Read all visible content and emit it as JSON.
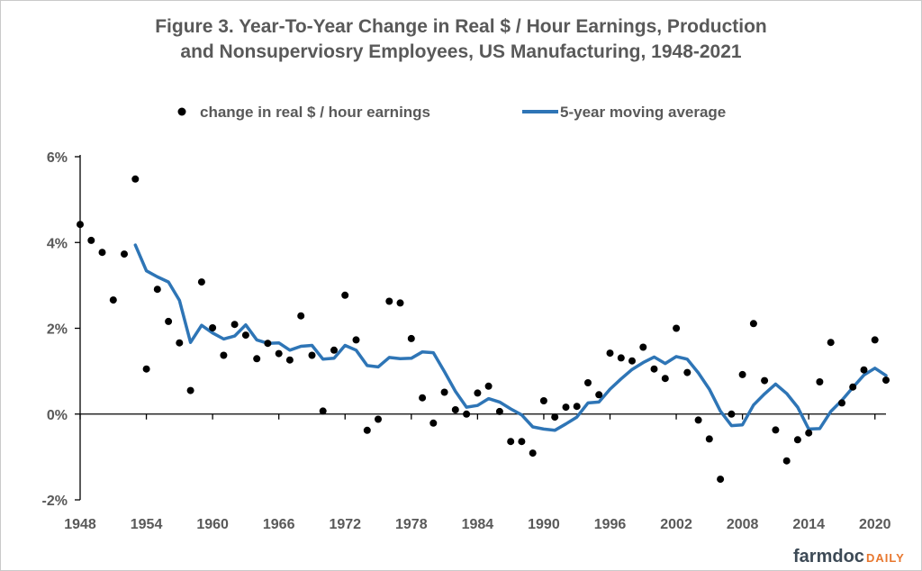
{
  "chart_data": {
    "type": "scatter",
    "title_line1": "Figure 3. Year-To-Year Change in Real $ / Hour Earnings, Production",
    "title_line2": "and Nonsuperviosry Employees, US Manufacturing, 1948-2021",
    "legend": {
      "placement": "top",
      "points_label": "change in real $ / hour earnings",
      "line_label": "5-year moving average"
    },
    "colors": {
      "points": "#000000",
      "line": "#2e75b6",
      "text": "#595959",
      "axis": "#000000"
    },
    "x_range": [
      1948,
      2021
    ],
    "y_range": [
      -2,
      6
    ],
    "x_ticks": [
      1948,
      1954,
      1960,
      1966,
      1972,
      1978,
      1984,
      1990,
      1996,
      2002,
      2008,
      2014,
      2020
    ],
    "x_tick_labels": [
      "1948",
      "1954",
      "1960",
      "1966",
      "1972",
      "1978",
      "1984",
      "1990",
      "1996",
      "2002",
      "2008",
      "2014",
      "2020"
    ],
    "y_ticks": [
      -2,
      0,
      2,
      4,
      6
    ],
    "y_tick_labels": [
      "-2%",
      "0%",
      "2%",
      "4%",
      "6%"
    ],
    "grid": false,
    "points": [
      [
        1948,
        4.42
      ],
      [
        1949,
        4.05
      ],
      [
        1950,
        3.77
      ],
      [
        1951,
        2.66
      ],
      [
        1952,
        3.73
      ],
      [
        1953,
        5.48
      ],
      [
        1954,
        1.05
      ],
      [
        1955,
        2.91
      ],
      [
        1956,
        2.16
      ],
      [
        1957,
        1.66
      ],
      [
        1958,
        0.55
      ],
      [
        1959,
        3.08
      ],
      [
        1960,
        2.01
      ],
      [
        1961,
        1.37
      ],
      [
        1962,
        2.09
      ],
      [
        1963,
        1.84
      ],
      [
        1964,
        1.29
      ],
      [
        1965,
        1.65
      ],
      [
        1966,
        1.41
      ],
      [
        1967,
        1.26
      ],
      [
        1968,
        2.29
      ],
      [
        1969,
        1.37
      ],
      [
        1970,
        0.07
      ],
      [
        1971,
        1.49
      ],
      [
        1972,
        2.77
      ],
      [
        1973,
        1.73
      ],
      [
        1974,
        -0.38
      ],
      [
        1975,
        -0.12
      ],
      [
        1976,
        2.63
      ],
      [
        1977,
        2.59
      ],
      [
        1978,
        1.76
      ],
      [
        1979,
        0.38
      ],
      [
        1980,
        -0.21
      ],
      [
        1981,
        0.51
      ],
      [
        1982,
        0.1
      ],
      [
        1983,
        0.0
      ],
      [
        1984,
        0.49
      ],
      [
        1985,
        0.65
      ],
      [
        1986,
        0.06
      ],
      [
        1987,
        -0.64
      ],
      [
        1988,
        -0.64
      ],
      [
        1989,
        -0.91
      ],
      [
        1990,
        0.31
      ],
      [
        1991,
        -0.07
      ],
      [
        1992,
        0.16
      ],
      [
        1993,
        0.18
      ],
      [
        1994,
        0.73
      ],
      [
        1995,
        0.45
      ],
      [
        1996,
        1.42
      ],
      [
        1997,
        1.31
      ],
      [
        1998,
        1.24
      ],
      [
        1999,
        1.56
      ],
      [
        2000,
        1.05
      ],
      [
        2001,
        0.83
      ],
      [
        2002,
        2.0
      ],
      [
        2003,
        0.97
      ],
      [
        2004,
        -0.14
      ],
      [
        2005,
        -0.58
      ],
      [
        2006,
        -1.52
      ],
      [
        2007,
        0.0
      ],
      [
        2008,
        0.92
      ],
      [
        2009,
        2.11
      ],
      [
        2010,
        0.78
      ],
      [
        2011,
        -0.37
      ],
      [
        2012,
        -1.09
      ],
      [
        2013,
        -0.6
      ],
      [
        2014,
        -0.44
      ],
      [
        2015,
        0.75
      ],
      [
        2016,
        1.67
      ],
      [
        2017,
        0.26
      ],
      [
        2018,
        0.63
      ],
      [
        2019,
        1.03
      ],
      [
        2020,
        1.73
      ],
      [
        2021,
        0.79
      ]
    ],
    "moving_average": [
      [
        1953,
        3.94
      ],
      [
        1954,
        3.34
      ],
      [
        1955,
        3.2
      ],
      [
        1956,
        3.08
      ],
      [
        1957,
        2.65
      ],
      [
        1958,
        1.67
      ],
      [
        1959,
        2.07
      ],
      [
        1960,
        1.89
      ],
      [
        1961,
        1.75
      ],
      [
        1962,
        1.82
      ],
      [
        1963,
        2.08
      ],
      [
        1964,
        1.73
      ],
      [
        1965,
        1.65
      ],
      [
        1966,
        1.66
      ],
      [
        1967,
        1.49
      ],
      [
        1968,
        1.58
      ],
      [
        1969,
        1.6
      ],
      [
        1970,
        1.28
      ],
      [
        1971,
        1.3
      ],
      [
        1972,
        1.6
      ],
      [
        1973,
        1.49
      ],
      [
        1974,
        1.13
      ],
      [
        1975,
        1.1
      ],
      [
        1976,
        1.32
      ],
      [
        1977,
        1.29
      ],
      [
        1978,
        1.3
      ],
      [
        1979,
        1.45
      ],
      [
        1980,
        1.43
      ],
      [
        1981,
        0.99
      ],
      [
        1982,
        0.53
      ],
      [
        1983,
        0.16
      ],
      [
        1984,
        0.2
      ],
      [
        1985,
        0.36
      ],
      [
        1986,
        0.28
      ],
      [
        1987,
        0.12
      ],
      [
        1988,
        -0.02
      ],
      [
        1989,
        -0.3
      ],
      [
        1990,
        -0.35
      ],
      [
        1991,
        -0.38
      ],
      [
        1992,
        -0.23
      ],
      [
        1993,
        -0.07
      ],
      [
        1994,
        0.26
      ],
      [
        1995,
        0.28
      ],
      [
        1996,
        0.58
      ],
      [
        1997,
        0.82
      ],
      [
        1998,
        1.04
      ],
      [
        1999,
        1.2
      ],
      [
        2000,
        1.33
      ],
      [
        2001,
        1.18
      ],
      [
        2002,
        1.34
      ],
      [
        2003,
        1.28
      ],
      [
        2004,
        0.96
      ],
      [
        2005,
        0.58
      ],
      [
        2006,
        0.07
      ],
      [
        2007,
        -0.27
      ],
      [
        2008,
        -0.25
      ],
      [
        2009,
        0.21
      ],
      [
        2010,
        0.47
      ],
      [
        2011,
        0.7
      ],
      [
        2012,
        0.48
      ],
      [
        2013,
        0.16
      ],
      [
        2014,
        -0.35
      ],
      [
        2015,
        -0.34
      ],
      [
        2016,
        0.06
      ],
      [
        2017,
        0.32
      ],
      [
        2018,
        0.62
      ],
      [
        2019,
        0.91
      ],
      [
        2020,
        1.07
      ],
      [
        2021,
        0.9
      ]
    ]
  },
  "branding": {
    "logo_part1": "farmdoc",
    "logo_part2": "DAILY"
  }
}
